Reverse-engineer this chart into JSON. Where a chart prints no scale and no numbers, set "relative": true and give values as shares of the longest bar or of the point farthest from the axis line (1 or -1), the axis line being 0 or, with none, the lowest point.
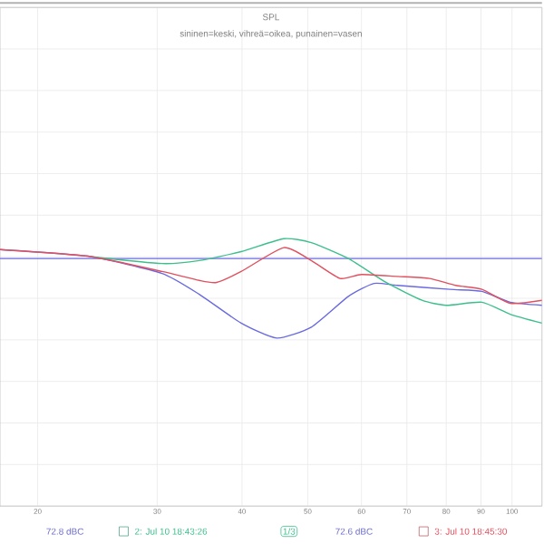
{
  "chart_data": {
    "type": "line",
    "title": "SPL",
    "subtitle": "sininen=keski, vihreä=oikea, punainen=vasen",
    "relative": true,
    "log": "x",
    "grid": true,
    "xlim": [
      17.6,
      110.7
    ],
    "xticks": [
      20,
      30,
      40,
      50,
      60,
      70,
      80,
      90,
      100
    ],
    "series": [
      {
        "color": "#6a6ae0",
        "x": [
          17.6,
          23.9,
          30.5,
          34.6,
          39.9,
          45.0,
          50.6,
          57.4,
          62.6,
          67.8,
          81.0,
          90.3,
          99.4,
          110.7
        ],
        "values": [
          0.89,
          0.82,
          0.65,
          0.44,
          0.15,
          0,
          0.11,
          0.42,
          0.55,
          0.53,
          0.49,
          0.47,
          0.36,
          0.33
        ]
      },
      {
        "name": "2: Jul 10 18:43:26",
        "color": "#3cbf8c",
        "x": [
          23.9,
          30.5,
          34.6,
          39.9,
          46.1,
          50.6,
          57.4,
          65.2,
          73.7,
          80.0,
          90.3,
          99.4,
          110.7
        ],
        "values": [
          0.82,
          0.75,
          0.78,
          0.87,
          1,
          0.96,
          0.8,
          0.56,
          0.38,
          0.33,
          0.36,
          0.24,
          0.15
        ]
      },
      {
        "name": "3: Jul 10 18:45:30",
        "color": "#e0505e",
        "x": [
          17.6,
          23.9,
          30.5,
          34.6,
          36.7,
          39.9,
          46.1,
          50.6,
          55.8,
          60.0,
          67.8,
          75.6,
          82.6,
          90.3,
          99.4,
          110.7
        ],
        "values": [
          0.89,
          0.82,
          0.67,
          0.58,
          0.56,
          0.67,
          0.91,
          0.78,
          0.6,
          0.64,
          0.62,
          0.6,
          0.53,
          0.49,
          0.35,
          0.38
        ]
      }
    ],
    "ref_lines": [
      {
        "axis": "y",
        "value": 0.8,
        "color": "#6a6ae0"
      }
    ],
    "annotations": [
      "72.8 dBC",
      "1/3",
      "72.6 dBC"
    ]
  }
}
